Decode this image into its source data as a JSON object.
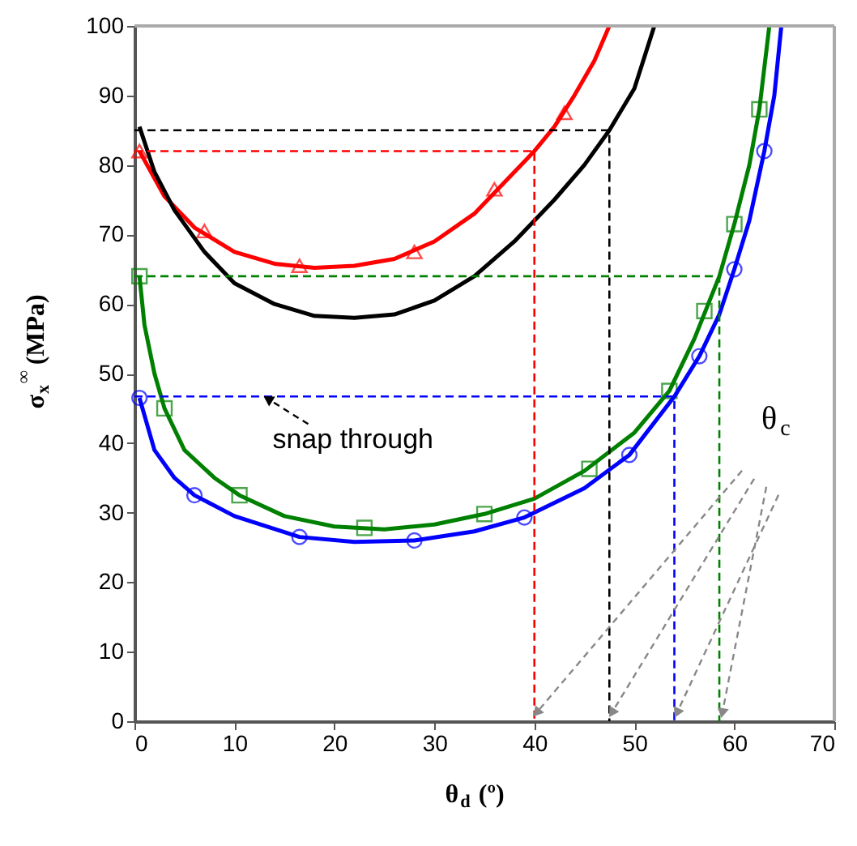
{
  "chart_data": {
    "type": "line",
    "xlabel": "θ$_{d}$ (º)",
    "ylabel": "σ$_{x}$$^{∞}$ (MPa)",
    "xlim": [
      0,
      70
    ],
    "ylim": [
      0,
      100
    ],
    "xticks": [
      0,
      10,
      20,
      30,
      40,
      50,
      60,
      70
    ],
    "yticks": [
      0,
      10,
      20,
      30,
      40,
      50,
      60,
      70,
      80,
      90,
      100
    ],
    "grid": false,
    "series": [
      {
        "color": "#ff0000",
        "line_style": "solid",
        "x": [
          0.5,
          3,
          6,
          10,
          14,
          18,
          22,
          26,
          30,
          34,
          38,
          40,
          42,
          44,
          46,
          47.5
        ],
        "values": [
          82,
          75.5,
          71,
          67.5,
          65.8,
          65.2,
          65.5,
          66.5,
          69,
          73,
          79,
          82,
          85.5,
          90,
          95,
          100
        ]
      },
      {
        "type": "scatter",
        "color": "#ff0000",
        "marker": "triangle",
        "x": [
          0.5,
          7,
          16.5,
          28,
          36,
          43
        ],
        "values": [
          82,
          70.5,
          65.5,
          67.5,
          76.5,
          87.5
        ]
      },
      {
        "color": "#000000",
        "line_style": "solid",
        "x": [
          0.5,
          2,
          4,
          7,
          10,
          14,
          18,
          22,
          26,
          30,
          34,
          38,
          42,
          45,
          47.5,
          50,
          52
        ],
        "values": [
          85.5,
          79,
          73.5,
          67.5,
          63,
          60,
          58.3,
          58,
          58.5,
          60.5,
          64,
          69,
          75,
          80,
          85,
          91,
          100
        ]
      },
      {
        "color": "#008000",
        "line_style": "solid",
        "x": [
          0.5,
          1,
          2,
          3,
          5,
          8,
          10.5,
          15,
          20,
          25,
          30,
          35,
          40,
          45,
          50,
          53.5,
          56,
          58.5,
          60,
          61.5,
          62.5,
          63.5
        ],
        "values": [
          64,
          57,
          50,
          45,
          39,
          35,
          32.5,
          29.5,
          28,
          27.6,
          28.3,
          29.8,
          32,
          36,
          41.5,
          47.5,
          55,
          64,
          71.5,
          80,
          88,
          100
        ]
      },
      {
        "type": "scatter",
        "color": "#008000",
        "marker": "square",
        "x": [
          0.5,
          3,
          10.5,
          23,
          35,
          45.5,
          53.5,
          57,
          60,
          62.5
        ],
        "values": [
          64,
          45,
          32.5,
          27.8,
          29.8,
          36.3,
          47.5,
          59,
          71.5,
          88
        ]
      },
      {
        "color": "#0000ff",
        "line_style": "solid",
        "x": [
          0.5,
          2,
          4,
          6,
          10,
          16.5,
          22,
          28,
          34,
          39,
          45,
          49.5,
          54,
          56.5,
          58.5,
          60,
          61.5,
          63,
          64,
          64.7
        ],
        "values": [
          46.5,
          39,
          35,
          32.5,
          29.5,
          26.5,
          25.8,
          26,
          27.3,
          29.3,
          33.5,
          38.3,
          46.7,
          52.5,
          58.5,
          65,
          72,
          82,
          90,
          100
        ]
      },
      {
        "type": "scatter",
        "color": "#0000ff",
        "marker": "circle",
        "x": [
          0.5,
          6,
          16.5,
          28,
          39,
          49.5,
          56.5,
          60,
          63
        ],
        "values": [
          46.5,
          32.5,
          26.5,
          26,
          29.3,
          38.3,
          52.5,
          65,
          82
        ]
      },
      {
        "color": "#ff0000",
        "line_style": "dashed",
        "x": [
          0,
          40,
          40
        ],
        "values": [
          82,
          82,
          0
        ]
      },
      {
        "color": "#000000",
        "line_style": "dashed",
        "x": [
          0,
          47.5,
          47.5
        ],
        "values": [
          85,
          85,
          0
        ]
      },
      {
        "color": "#008000",
        "line_style": "dashed",
        "x": [
          0,
          58.5,
          58.5
        ],
        "values": [
          64,
          64,
          0
        ]
      },
      {
        "color": "#0000ff",
        "line_style": "dashed",
        "x": [
          0,
          54,
          54
        ],
        "values": [
          46.7,
          46.7,
          0
        ]
      }
    ],
    "annotations": [
      {
        "text": "snap through",
        "x": 13,
        "y": 46.7
      },
      "θ$_{c}$"
    ]
  }
}
